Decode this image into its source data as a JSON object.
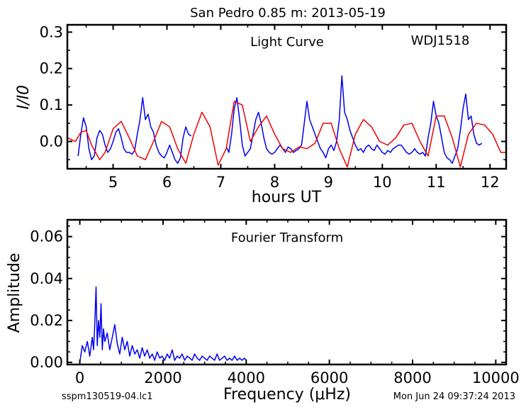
{
  "header": {
    "title": "San Pedro 0.85 m:  2013-05-19"
  },
  "footer": {
    "left": "sspm130519-04.lc1",
    "right": "Mon Jun 24 09:37:24 2013"
  },
  "chart_data": [
    {
      "type": "line",
      "annotation": "Light Curve",
      "object_label": "WDJ1518",
      "xlabel": "hours UT",
      "ylabel": "I/I0",
      "xlim": [
        4.15,
        12.3
      ],
      "ylim": [
        -0.075,
        0.32
      ],
      "xticks": [
        5,
        6,
        7,
        8,
        9,
        10,
        11,
        12
      ],
      "yticks": [
        0.0,
        0.1,
        0.2,
        0.3
      ],
      "ytick_labels": [
        "0.0",
        "0.1",
        "0.2",
        "0.3"
      ],
      "colors": {
        "data": "#0000ee",
        "model": "#ee0000"
      },
      "series": [
        {
          "color": "#0000ee",
          "segments": [
            {
              "x": [
                4.35,
                4.4,
                4.45,
                4.5,
                4.55,
                4.6,
                4.65,
                4.7,
                4.75,
                4.8,
                4.85,
                4.9,
                4.95,
                5.0,
                5.05,
                5.1,
                5.15,
                5.2,
                5.25,
                5.3,
                5.35,
                5.4,
                5.45,
                5.5,
                5.55,
                5.6,
                5.65,
                5.7,
                5.75,
                5.8,
                5.85,
                5.9,
                5.95,
                6.0,
                6.05,
                6.1,
                6.15,
                6.2,
                6.25,
                6.3,
                6.35,
                6.4,
                6.45
              ],
              "y": [
                -0.04,
                0.02,
                0.065,
                0.04,
                -0.02,
                -0.05,
                -0.04,
                0.01,
                0.03,
                0.02,
                -0.01,
                -0.03,
                -0.02,
                0.0,
                0.025,
                0.035,
                0.01,
                -0.02,
                -0.03,
                -0.03,
                -0.035,
                -0.025,
                0.02,
                0.06,
                0.12,
                0.06,
                0.075,
                0.04,
                0.025,
                -0.01,
                -0.03,
                -0.04,
                -0.045,
                -0.03,
                -0.01,
                -0.03,
                -0.05,
                -0.06,
                -0.045,
                0.01,
                0.04,
                0.02,
                0.015
              ]
            },
            {
              "x": [
                7.1,
                7.15,
                7.2,
                7.25,
                7.3,
                7.35,
                7.4,
                7.45,
                7.5,
                7.55,
                7.6,
                7.65,
                7.7,
                7.75,
                7.8,
                7.85,
                7.9,
                7.95,
                8.0,
                8.05,
                8.1,
                8.15,
                8.2,
                8.25,
                8.3,
                8.35,
                8.4,
                8.45,
                8.5,
                8.55,
                8.6,
                8.65,
                8.7,
                8.75,
                8.8,
                8.85,
                8.9,
                8.95,
                9.0,
                9.05,
                9.1,
                9.15,
                9.2,
                9.25,
                9.3,
                9.35,
                9.4,
                9.45,
                9.5,
                9.55,
                9.6,
                9.65,
                9.7,
                9.75,
                9.8,
                9.85,
                9.9,
                9.95,
                10.0,
                10.05,
                10.1,
                10.15,
                10.2,
                10.25,
                10.3,
                10.35,
                10.4,
                10.45,
                10.5,
                10.55,
                10.6,
                10.65,
                10.7,
                10.75,
                10.8,
                10.85,
                10.9,
                10.95,
                11.0,
                11.05,
                11.1,
                11.15,
                11.2,
                11.25,
                11.3,
                11.35,
                11.4,
                11.45,
                11.5,
                11.55,
                11.6,
                11.65,
                11.7,
                11.75,
                11.8,
                11.85
              ],
              "y": [
                -0.015,
                -0.03,
                0.02,
                0.09,
                0.12,
                0.06,
                -0.01,
                -0.04,
                -0.03,
                -0.02,
                0.02,
                0.06,
                0.08,
                0.05,
                0.01,
                -0.02,
                -0.03,
                -0.035,
                -0.03,
                -0.02,
                -0.01,
                -0.02,
                -0.03,
                -0.015,
                -0.02,
                -0.03,
                -0.025,
                -0.02,
                -0.01,
                0.05,
                0.11,
                0.06,
                0.04,
                0.02,
                0.0,
                -0.02,
                -0.03,
                -0.045,
                -0.02,
                -0.01,
                -0.025,
                0.0,
                0.06,
                0.18,
                0.08,
                0.06,
                0.03,
                0.01,
                -0.01,
                -0.025,
                -0.02,
                -0.03,
                -0.015,
                -0.01,
                -0.02,
                -0.025,
                -0.01,
                -0.02,
                -0.03,
                -0.035,
                -0.025,
                -0.03,
                -0.02,
                -0.015,
                -0.01,
                -0.01,
                -0.02,
                -0.03,
                -0.035,
                -0.03,
                -0.02,
                -0.03,
                -0.035,
                -0.03,
                -0.04,
                0.01,
                0.05,
                0.11,
                0.07,
                0.05,
                0.01,
                -0.03,
                -0.045,
                -0.05,
                -0.06,
                -0.04,
                -0.02,
                0.03,
                0.09,
                0.13,
                0.06,
                0.07,
                0.02,
                -0.005,
                -0.01,
                -0.005
              ]
            }
          ]
        },
        {
          "color": "#ee0000",
          "segments": [
            {
              "x": [
                4.15,
                4.3,
                4.4,
                4.5,
                4.6,
                4.75,
                4.85,
                5.0,
                5.15,
                5.3,
                5.45,
                5.6,
                5.75,
                5.9,
                6.05,
                6.2,
                6.35,
                6.5,
                6.65,
                6.8,
                6.95,
                7.1,
                7.25,
                7.4,
                7.55,
                7.7,
                7.85,
                8.0,
                8.15,
                8.3,
                8.45,
                8.6,
                8.75,
                8.9,
                9.05,
                9.2,
                9.35,
                9.5,
                9.65,
                9.8,
                9.95,
                10.1,
                10.25,
                10.4,
                10.55,
                10.7,
                10.85,
                11.0,
                11.15,
                11.3,
                11.45,
                11.6,
                11.75,
                11.9,
                12.05,
                12.2,
                12.3
              ],
              "y": [
                0.01,
                0.0,
                0.025,
                0.03,
                -0.01,
                -0.05,
                -0.03,
                0.035,
                0.055,
                0.01,
                -0.04,
                -0.05,
                0.0,
                0.055,
                0.04,
                -0.02,
                -0.06,
                0.02,
                0.08,
                0.04,
                -0.065,
                -0.02,
                0.11,
                0.1,
                0.0,
                0.04,
                0.07,
                0.02,
                -0.02,
                -0.03,
                -0.015,
                -0.02,
                -0.005,
                0.05,
                0.05,
                -0.02,
                -0.07,
                0.02,
                0.06,
                0.04,
                0.0,
                -0.01,
                0.01,
                0.045,
                0.05,
                0.0,
                -0.04,
                0.07,
                0.07,
                0.01,
                -0.07,
                0.02,
                0.05,
                0.045,
                0.02,
                -0.03,
                -0.03
              ]
            }
          ]
        }
      ]
    },
    {
      "type": "line",
      "annotation": "Fourier Transform",
      "xlabel": "Frequency (μHz)",
      "ylabel": "Amplitude",
      "xlim": [
        -300,
        10250
      ],
      "ylim": [
        -0.001,
        0.068
      ],
      "xticks": [
        0,
        2000,
        4000,
        6000,
        8000,
        10000
      ],
      "yticks": [
        0.0,
        0.02,
        0.04,
        0.06
      ],
      "ytick_labels": [
        "0.00",
        "0.02",
        "0.04",
        "0.06"
      ],
      "series": [
        {
          "color": "#0000ee",
          "x": [
            0,
            60,
            120,
            180,
            240,
            300,
            330,
            360,
            390,
            420,
            450,
            480,
            510,
            540,
            570,
            600,
            660,
            720,
            780,
            840,
            900,
            960,
            1020,
            1080,
            1140,
            1200,
            1260,
            1320,
            1380,
            1440,
            1500,
            1560,
            1620,
            1680,
            1740,
            1800,
            1860,
            1920,
            1980,
            2040,
            2100,
            2160,
            2220,
            2280,
            2340,
            2400,
            2460,
            2520,
            2580,
            2640,
            2700,
            2760,
            2820,
            2880,
            2940,
            3000,
            3060,
            3120,
            3180,
            3240,
            3300,
            3360,
            3420,
            3480,
            3540,
            3600,
            3660,
            3720,
            3780,
            3840,
            3900,
            3960,
            4000
          ],
          "y": [
            0.0,
            0.008,
            0.005,
            0.01,
            0.003,
            0.012,
            0.006,
            0.018,
            0.036,
            0.008,
            0.02,
            0.012,
            0.028,
            0.006,
            0.016,
            0.01,
            0.014,
            0.006,
            0.012,
            0.018,
            0.009,
            0.004,
            0.012,
            0.006,
            0.01,
            0.003,
            0.008,
            0.004,
            0.006,
            0.002,
            0.007,
            0.003,
            0.006,
            0.002,
            0.004,
            0.001,
            0.005,
            0.002,
            0.003,
            0.001,
            0.004,
            0.002,
            0.006,
            0.001,
            0.003,
            0.002,
            0.004,
            0.001,
            0.003,
            0.002,
            0.001,
            0.004,
            0.002,
            0.001,
            0.003,
            0.002,
            0.001,
            0.003,
            0.002,
            0.001,
            0.004,
            0.001,
            0.002,
            0.003,
            0.001,
            0.002,
            0.001,
            0.003,
            0.001,
            0.002,
            0.001,
            0.002,
            0.001
          ]
        }
      ]
    }
  ]
}
